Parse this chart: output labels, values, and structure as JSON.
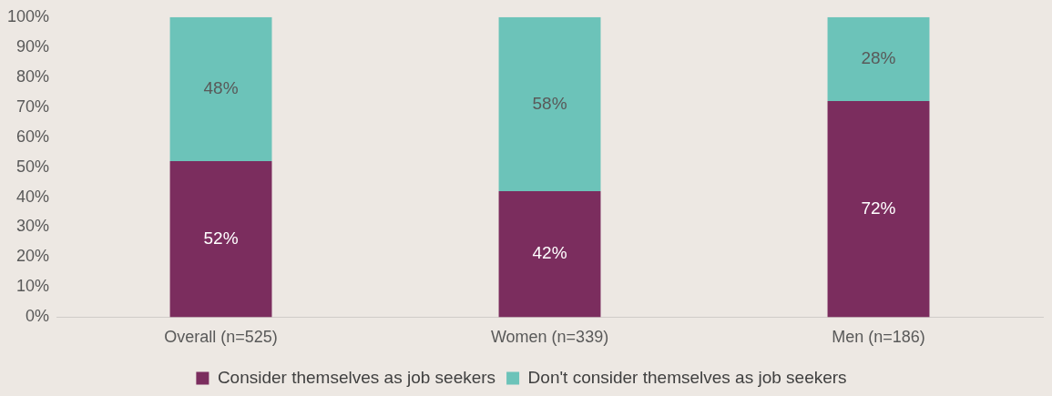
{
  "chart_data": {
    "type": "bar",
    "stacked": true,
    "categories": [
      "Overall (n=525)",
      "Women (n=339)",
      "Men (n=186)"
    ],
    "series": [
      {
        "name": "Consider themselves as job seekers",
        "color": "#7b2d5e",
        "values": [
          52,
          42,
          72
        ],
        "value_labels": [
          "52%",
          "42%",
          "72%"
        ]
      },
      {
        "name": "Don't consider themselves as job seekers",
        "color": "#6cc3b9",
        "values": [
          48,
          58,
          28
        ],
        "value_labels": [
          "48%",
          "58%",
          "28%"
        ]
      }
    ],
    "ylim": [
      0,
      100
    ],
    "yticks": [
      {
        "value": 0,
        "label": "0%"
      },
      {
        "value": 10,
        "label": "10%"
      },
      {
        "value": 20,
        "label": "20%"
      },
      {
        "value": 30,
        "label": "30%"
      },
      {
        "value": 40,
        "label": "40%"
      },
      {
        "value": 50,
        "label": "50%"
      },
      {
        "value": 60,
        "label": "60%"
      },
      {
        "value": 70,
        "label": "70%"
      },
      {
        "value": 80,
        "label": "80%"
      },
      {
        "value": 90,
        "label": "90%"
      },
      {
        "value": 100,
        "label": "100%"
      }
    ],
    "grid": false,
    "legend": "bottom"
  }
}
